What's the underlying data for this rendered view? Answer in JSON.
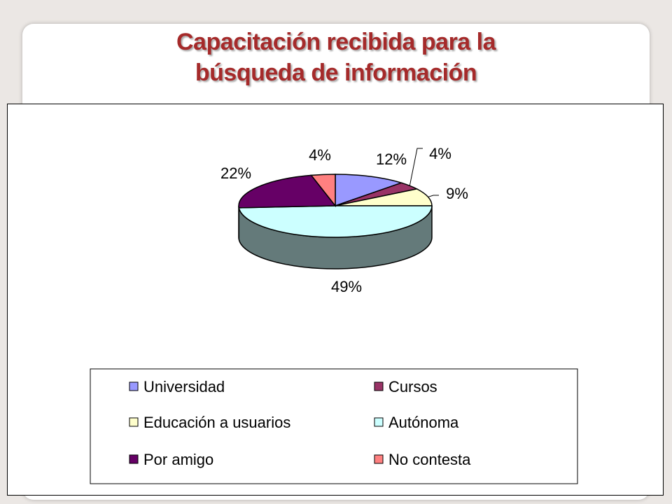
{
  "slide": {
    "title_line1": "Capacitación recibida para la",
    "title_line2": "búsqueda de información"
  },
  "colors": {
    "background": "#ebe7e4",
    "title": "#a52a2a",
    "side": "#647a7a"
  },
  "chart_data": {
    "type": "pie",
    "style": "3d",
    "legend_position": "bottom",
    "categories": [
      "Universidad",
      "Cursos",
      "Educación a usuarios",
      "Autónoma",
      "Por amigo",
      "No contesta"
    ],
    "values": [
      12,
      4,
      9,
      49,
      22,
      4
    ],
    "labels": [
      "12%",
      "4%",
      "9%",
      "49%",
      "22%",
      "4%"
    ],
    "colors": [
      "#9999ff",
      "#993366",
      "#ffffcc",
      "#ccffff",
      "#660066",
      "#ff8080"
    ]
  }
}
